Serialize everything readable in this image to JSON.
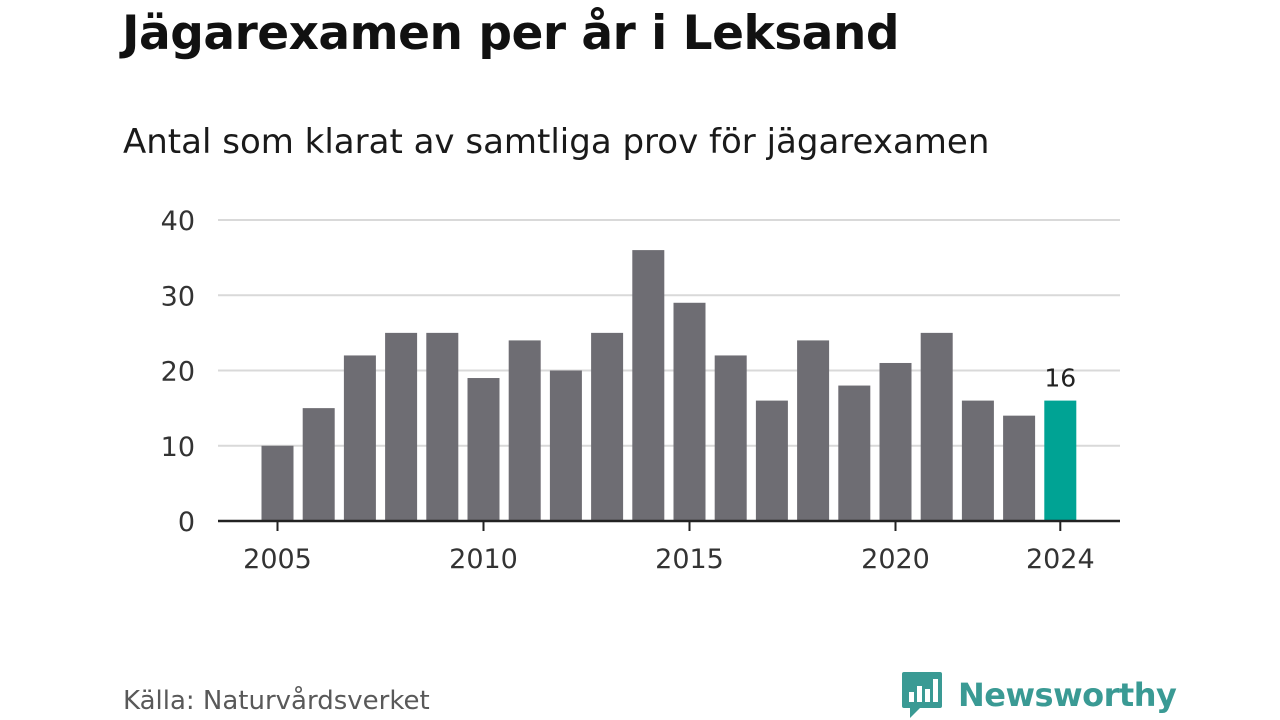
{
  "title": "Jägarexamen per år i Leksand",
  "subtitle": "Antal som klarat av samtliga prov för jägarexamen",
  "source": "Källa: Naturvårdsverket",
  "brand": "Newsworthy",
  "colors": {
    "bar": "#6e6d73",
    "highlight": "#00a394",
    "grid": "#d9d9d9",
    "axis": "#222222",
    "brand": "#3a9a94"
  },
  "chart_data": {
    "type": "bar",
    "x": [
      2005,
      2006,
      2007,
      2008,
      2009,
      2010,
      2011,
      2012,
      2013,
      2014,
      2015,
      2016,
      2017,
      2018,
      2019,
      2020,
      2021,
      2022,
      2023,
      2024
    ],
    "values": [
      10,
      15,
      22,
      25,
      25,
      19,
      24,
      20,
      25,
      36,
      29,
      22,
      16,
      24,
      18,
      21,
      25,
      16,
      14,
      16
    ],
    "highlight_x": 2024,
    "value_label": "16",
    "x_ticks": [
      2005,
      2010,
      2015,
      2020,
      2024
    ],
    "y_ticks": [
      0,
      10,
      20,
      30,
      40
    ],
    "ylim": [
      0,
      40
    ],
    "grid": true,
    "xlabel": "",
    "ylabel": ""
  }
}
